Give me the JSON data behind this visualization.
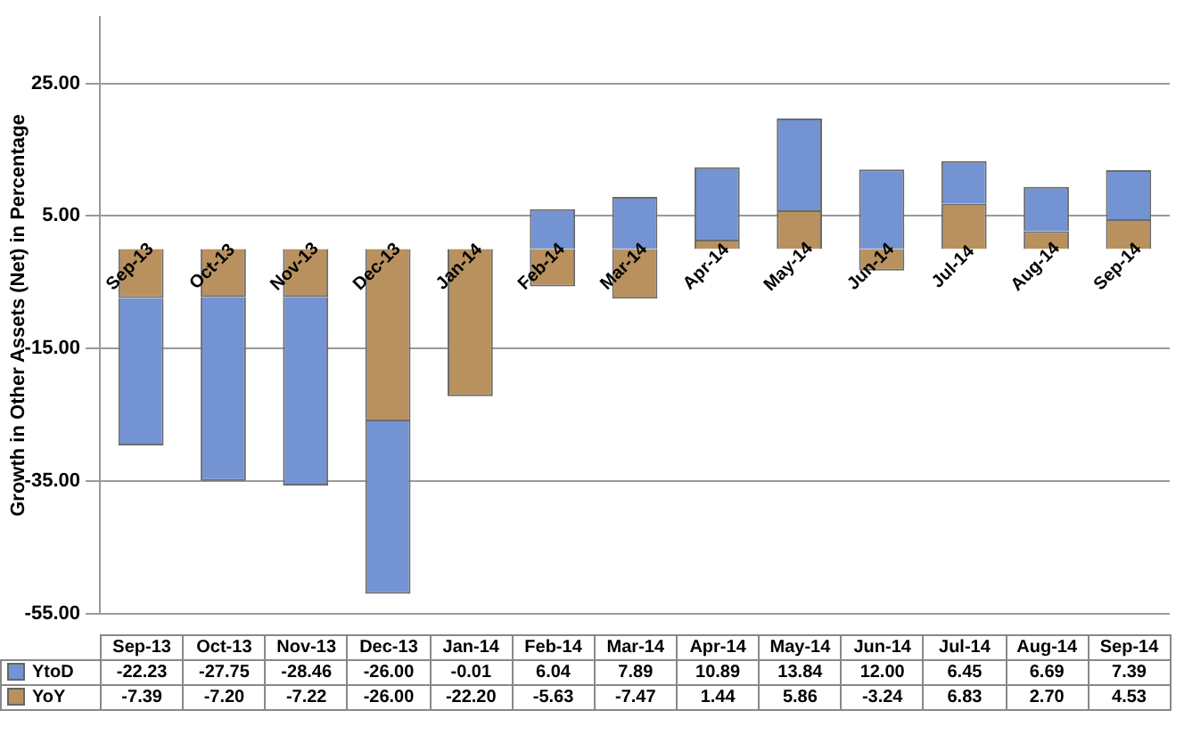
{
  "chart_data": {
    "type": "bar",
    "ylabel": "Growth in Other Assets (Net) in Percentage",
    "categories": [
      "Sep-13",
      "Oct-13",
      "Nov-13",
      "Dec-13",
      "Jan-14",
      "Feb-14",
      "Mar-14",
      "Apr-14",
      "May-14",
      "Jun-14",
      "Jul-14",
      "Aug-14",
      "Sep-14"
    ],
    "series": [
      {
        "name": "YoY",
        "color": "#b8915e",
        "values": [
          -7.39,
          -7.2,
          -7.22,
          -26,
          -22.2,
          -5.63,
          -7.47,
          1.44,
          5.86,
          -3.24,
          6.83,
          2.7,
          4.53
        ],
        "value_labels": [
          "-7.39",
          "-7.20",
          "-7.22",
          "-26.00",
          "-22.20",
          "-5.63",
          "-7.47",
          "1.44",
          "5.86",
          "-3.24",
          "6.83",
          "2.70",
          "4.53"
        ]
      },
      {
        "name": "YtoD",
        "color": "#7393d3",
        "values": [
          -22.23,
          -27.75,
          -28.46,
          -26,
          -0.01,
          6.04,
          7.89,
          10.89,
          13.84,
          12,
          6.45,
          6.69,
          7.39
        ],
        "value_labels": [
          "-22.23",
          "-27.75",
          "-28.46",
          "-26.00",
          "-0.01",
          "6.04",
          "7.89",
          "10.89",
          "13.84",
          "12.00",
          "6.45",
          "6.69",
          "7.39"
        ]
      }
    ],
    "stacked": true,
    "ylim": [
      -55,
      35
    ],
    "yticks": [
      {
        "value": -55,
        "label": "-55.00"
      },
      {
        "value": -35,
        "label": "-35.00"
      },
      {
        "value": -15,
        "label": "-15.00"
      },
      {
        "value": 5,
        "label": "5.00"
      },
      {
        "value": 25,
        "label": "25.00"
      }
    ],
    "grid": "y",
    "legend": "bottom"
  }
}
